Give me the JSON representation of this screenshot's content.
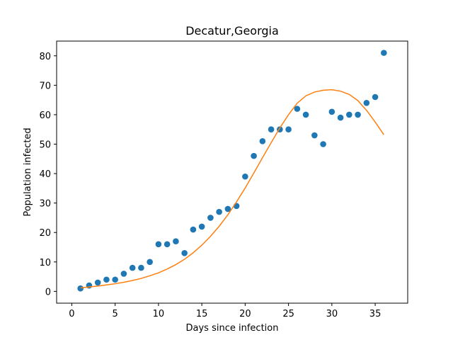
{
  "chart_data": {
    "type": "scatter",
    "title": "Decatur,Georgia",
    "xlabel": "Days since infection",
    "ylabel": "Population infected",
    "xlim": [
      -1.75,
      38.75
    ],
    "ylim": [
      -4,
      85
    ],
    "xticks": [
      0,
      5,
      10,
      15,
      20,
      25,
      30,
      35
    ],
    "yticks": [
      0,
      10,
      20,
      30,
      40,
      50,
      60,
      70,
      80
    ],
    "grid": false,
    "series": [
      {
        "kind": "points",
        "color": "#1f77b4",
        "x": [
          1,
          2,
          3,
          4,
          5,
          6,
          7,
          8,
          9,
          10,
          11,
          12,
          13,
          14,
          15,
          16,
          17,
          18,
          19,
          20,
          21,
          22,
          23,
          24,
          25,
          26,
          27,
          28,
          29,
          30,
          31,
          32,
          33,
          34,
          35,
          36
        ],
        "y": [
          1,
          2,
          3,
          4,
          4,
          6,
          8,
          8,
          10,
          16,
          16,
          17,
          13,
          21,
          22,
          25,
          27,
          28,
          29,
          39,
          46,
          51,
          55,
          55,
          55,
          62,
          60,
          53,
          50,
          61,
          59,
          60,
          60,
          64,
          66,
          81
        ]
      },
      {
        "kind": "line",
        "color": "#ff7f0e",
        "x": [
          1,
          2,
          3,
          4,
          5,
          6,
          7,
          8,
          9,
          10,
          11,
          12,
          13,
          14,
          15,
          16,
          17,
          18,
          19,
          20,
          21,
          22,
          23,
          24,
          25,
          26,
          27,
          28,
          29,
          30,
          31,
          32,
          33,
          34,
          35,
          36
        ],
        "y": [
          1.2,
          1.5,
          1.8,
          2.2,
          2.6,
          3.1,
          3.7,
          4.4,
          5.3,
          6.3,
          7.6,
          9.1,
          10.9,
          13.1,
          15.7,
          18.7,
          22.1,
          26.0,
          30.4,
          35.1,
          40.2,
          45.4,
          50.5,
          55.5,
          60.0,
          63.9,
          66.4,
          67.7,
          68.3,
          68.5,
          68.0,
          66.9,
          64.8,
          61.5,
          57.5,
          53.2
        ]
      }
    ]
  }
}
